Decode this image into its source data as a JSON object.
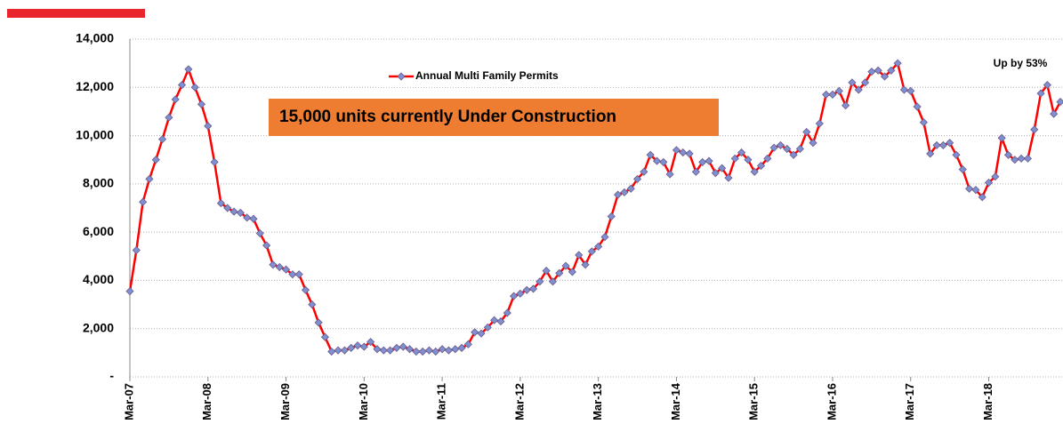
{
  "chart_data": {
    "type": "line",
    "categories": [
      "Mar-07",
      null,
      null,
      null,
      null,
      null,
      null,
      null,
      null,
      null,
      null,
      null,
      "Mar-08",
      null,
      null,
      null,
      null,
      null,
      null,
      null,
      null,
      null,
      null,
      null,
      "Mar-09",
      null,
      null,
      null,
      null,
      null,
      null,
      null,
      null,
      null,
      null,
      null,
      "Mar-10",
      null,
      null,
      null,
      null,
      null,
      null,
      null,
      null,
      null,
      null,
      null,
      "Mar-11",
      null,
      null,
      null,
      null,
      null,
      null,
      null,
      null,
      null,
      null,
      null,
      "Mar-12",
      null,
      null,
      null,
      null,
      null,
      null,
      null,
      null,
      null,
      null,
      null,
      "Mar-13",
      null,
      null,
      null,
      null,
      null,
      null,
      null,
      null,
      null,
      null,
      null,
      "Mar-14",
      null,
      null,
      null,
      null,
      null,
      null,
      null,
      null,
      null,
      null,
      null,
      "Mar-15",
      null,
      null,
      null,
      null,
      null,
      null,
      null,
      null,
      null,
      null,
      null,
      "Mar-16",
      null,
      null,
      null,
      null,
      null,
      null,
      null,
      null,
      null,
      null,
      null,
      "Mar-17",
      null,
      null,
      null,
      null,
      null,
      null,
      null,
      null,
      null,
      null,
      null,
      "Mar-18",
      null,
      null,
      null,
      null,
      null,
      null,
      null,
      null,
      null,
      null,
      null
    ],
    "series": [
      {
        "name": "Annual Multi Family Permits",
        "color": "#ff0000",
        "marker_color": "#7f8fd0",
        "values": [
          3550,
          5250,
          7250,
          8200,
          9000,
          9850,
          10750,
          11500,
          12100,
          12750,
          12000,
          11300,
          10400,
          8900,
          7200,
          7000,
          6850,
          6800,
          6600,
          6550,
          5950,
          5450,
          4650,
          4550,
          4450,
          4250,
          4250,
          3600,
          3000,
          2250,
          1650,
          1050,
          1100,
          1100,
          1200,
          1300,
          1250,
          1450,
          1150,
          1100,
          1100,
          1200,
          1250,
          1150,
          1050,
          1050,
          1100,
          1050,
          1150,
          1100,
          1150,
          1200,
          1350,
          1850,
          1800,
          2050,
          2350,
          2300,
          2650,
          3350,
          3450,
          3600,
          3650,
          3950,
          4400,
          3950,
          4300,
          4600,
          4350,
          5050,
          4650,
          5200,
          5400,
          5800,
          6650,
          7550,
          7650,
          7800,
          8200,
          8500,
          9200,
          8950,
          8900,
          8400,
          9400,
          9300,
          9250,
          8500,
          8900,
          8950,
          8450,
          8650,
          8250,
          9050,
          9300,
          9000,
          8500,
          8750,
          9050,
          9500,
          9600,
          9450,
          9200,
          9450,
          10150,
          9700,
          10500,
          11700,
          11700,
          11850,
          11250,
          12200,
          11900,
          12200,
          12650,
          12700,
          12450,
          12700,
          13000,
          11900,
          11850,
          11200,
          10550,
          9250,
          9600,
          9600,
          9700,
          9200,
          8600,
          7800,
          7750,
          7450,
          8050,
          8300,
          9900,
          9200,
          9000,
          9050,
          9050,
          10250,
          11750,
          12100,
          10900,
          11400
        ]
      }
    ],
    "ylim": [
      0,
      14000
    ],
    "yticks": [
      {
        "value": 0,
        "label": "-"
      },
      {
        "value": 2000,
        "label": "2,000"
      },
      {
        "value": 4000,
        "label": "4,000"
      },
      {
        "value": 6000,
        "label": "6,000"
      },
      {
        "value": 8000,
        "label": "8,000"
      },
      {
        "value": 10000,
        "label": "10,000"
      },
      {
        "value": 12000,
        "label": "12,000"
      },
      {
        "value": 14000,
        "label": "14,000"
      }
    ],
    "grid": true,
    "annotations": [
      "15,000 units currently Under Construction",
      "Up by 53%"
    ]
  }
}
